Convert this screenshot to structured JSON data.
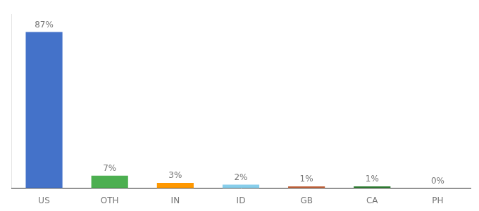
{
  "chart_data": {
    "type": "bar",
    "categories": [
      "US",
      "OTH",
      "IN",
      "ID",
      "GB",
      "CA",
      "PH"
    ],
    "values": [
      87,
      7,
      3,
      2,
      1,
      1,
      0
    ],
    "value_labels": [
      "87%",
      "7%",
      "3%",
      "2%",
      "1%",
      "1%",
      "0%"
    ],
    "colors": [
      "#4472c9",
      "#4caf50",
      "#ff9800",
      "#87ceeb",
      "#c0623b",
      "#2e7d32",
      "#c0623b"
    ],
    "ylim": [
      0,
      97
    ],
    "grid": false,
    "data_labels": true,
    "tick_labels": "x"
  }
}
